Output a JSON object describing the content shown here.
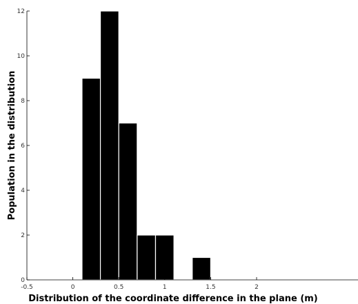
{
  "chart_data": {
    "type": "bar",
    "title": "",
    "xlabel": "Distribution of the coordinate difference in the plane (m)",
    "ylabel": "Population in the distribution",
    "xlim": [
      -0.5,
      2.4
    ],
    "ylim": [
      0,
      12
    ],
    "x_ticks": [
      -0.5,
      0,
      0.5,
      1,
      1.5,
      2
    ],
    "x_tick_labels": [
      "-0.5",
      "0",
      "0.5",
      "1",
      "1.5",
      "2"
    ],
    "y_ticks": [
      0,
      2,
      4,
      6,
      8,
      10,
      12
    ],
    "y_tick_labels": [
      "0",
      "2",
      "4",
      "6",
      "8",
      "10",
      "12"
    ],
    "bin_width": 0.2,
    "bins": [
      {
        "x_start": 0.1,
        "x_end": 0.3,
        "value": 9
      },
      {
        "x_start": 0.3,
        "x_end": 0.5,
        "value": 12
      },
      {
        "x_start": 0.5,
        "x_end": 0.7,
        "value": 7
      },
      {
        "x_start": 0.7,
        "x_end": 0.9,
        "value": 2
      },
      {
        "x_start": 0.9,
        "x_end": 1.1,
        "value": 2
      },
      {
        "x_start": 1.1,
        "x_end": 1.3,
        "value": 0
      },
      {
        "x_start": 1.3,
        "x_end": 1.5,
        "value": 1
      }
    ],
    "grid": false,
    "bar_color": "#000000",
    "bar_edge_color": "#ffffff"
  }
}
